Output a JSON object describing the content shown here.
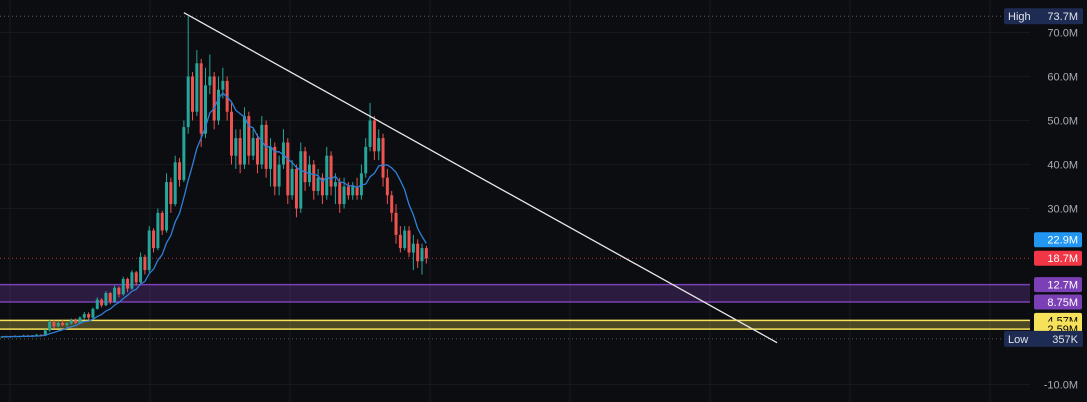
{
  "chart_data": {
    "type": "candlestick",
    "y_axis": {
      "ticks": [
        {
          "value": 70,
          "label": "70.0M"
        },
        {
          "value": 60,
          "label": "60.0M"
        },
        {
          "value": 50,
          "label": "50.0M"
        },
        {
          "value": 40,
          "label": "40.0M"
        },
        {
          "value": 30,
          "label": "30.0M"
        },
        {
          "value": -10,
          "label": "-10.0M"
        }
      ],
      "range": [
        -12.5,
        76
      ]
    },
    "markers": {
      "high": {
        "label": "High",
        "value_label": "73.7M",
        "value": 73.7
      },
      "low": {
        "label": "Low",
        "value_label": "357K",
        "value": 0.357
      }
    },
    "price_tags": [
      {
        "value_label": "22.9M",
        "value": 22.9,
        "color": "#2196f3",
        "text_color": "#ffffff",
        "meaning": "moving average"
      },
      {
        "value_label": "18.7M",
        "value": 18.7,
        "color": "#f23645",
        "text_color": "#ffffff",
        "meaning": "last price"
      },
      {
        "value_label": "12.7M",
        "value": 12.7,
        "color": "#7b3fb6",
        "text_color": "#ffffff"
      },
      {
        "value_label": "8.75M",
        "value": 8.75,
        "color": "#7b3fb6",
        "text_color": "#ffffff"
      },
      {
        "value_label": "4.57M",
        "value": 4.57,
        "color": "#f5e15a",
        "text_color": "#000000"
      },
      {
        "value_label": "2.59M",
        "value": 2.59,
        "color": "#f5e15a",
        "text_color": "#000000"
      }
    ],
    "zones": [
      {
        "from": 8.75,
        "to": 12.7,
        "color": "#7b3fb6"
      },
      {
        "from": 2.59,
        "to": 4.57,
        "color": "#f5e15a"
      }
    ],
    "trendline": {
      "start": {
        "bar": 42,
        "value": 74.5
      },
      "end": {
        "bar": 179,
        "value": -0.5
      }
    },
    "candles": [
      [
        0.8,
        1.0,
        0.6,
        0.9
      ],
      [
        0.9,
        1.1,
        0.7,
        0.8
      ],
      [
        0.8,
        1.0,
        0.6,
        1.0
      ],
      [
        1.0,
        1.2,
        0.8,
        0.9
      ],
      [
        0.9,
        1.1,
        0.7,
        1.0
      ],
      [
        1.0,
        1.3,
        0.8,
        1.1
      ],
      [
        1.1,
        1.3,
        0.9,
        1.0
      ],
      [
        1.0,
        1.2,
        0.8,
        1.2
      ],
      [
        1.2,
        1.5,
        1.0,
        1.3
      ],
      [
        1.3,
        1.4,
        1.0,
        1.1
      ],
      [
        1.1,
        2.6,
        1.0,
        2.3
      ],
      [
        2.3,
        4.8,
        2.0,
        4.2
      ],
      [
        4.2,
        4.6,
        2.8,
        3.2
      ],
      [
        3.2,
        4.5,
        3.0,
        4.0
      ],
      [
        4.0,
        4.6,
        3.2,
        3.5
      ],
      [
        3.5,
        4.2,
        2.8,
        3.9
      ],
      [
        3.9,
        5.0,
        3.6,
        4.6
      ],
      [
        4.6,
        5.0,
        3.8,
        4.0
      ],
      [
        4.0,
        5.5,
        3.8,
        5.2
      ],
      [
        5.2,
        6.5,
        4.8,
        6.0
      ],
      [
        6.0,
        6.4,
        4.8,
        5.2
      ],
      [
        5.2,
        7.5,
        5.0,
        7.2
      ],
      [
        7.2,
        9.8,
        7.0,
        9.3
      ],
      [
        9.3,
        9.6,
        7.5,
        8.0
      ],
      [
        8.0,
        11.2,
        7.8,
        10.8
      ],
      [
        10.8,
        11.0,
        8.2,
        8.8
      ],
      [
        8.8,
        12.5,
        8.5,
        12.0
      ],
      [
        12.0,
        12.3,
        9.8,
        10.5
      ],
      [
        10.5,
        14.5,
        10.2,
        14.0
      ],
      [
        14.0,
        14.3,
        11.0,
        11.8
      ],
      [
        11.8,
        16.0,
        11.5,
        15.5
      ],
      [
        15.5,
        15.8,
        12.5,
        13.2
      ],
      [
        13.2,
        20.0,
        13.0,
        19.0
      ],
      [
        19.0,
        19.5,
        15.0,
        16.0
      ],
      [
        16.0,
        26.0,
        15.5,
        25.0
      ],
      [
        25.0,
        25.5,
        20.0,
        21.0
      ],
      [
        21.0,
        30.0,
        20.5,
        29.0
      ],
      [
        29.0,
        29.5,
        24.0,
        25.0
      ],
      [
        25.0,
        38.0,
        24.5,
        36.0
      ],
      [
        36.0,
        37.0,
        29.0,
        31.0
      ],
      [
        31.0,
        42.0,
        30.5,
        40.5
      ],
      [
        40.5,
        41.5,
        35.0,
        36.5
      ],
      [
        36.5,
        50.0,
        36.0,
        48.5
      ],
      [
        48.5,
        73.7,
        47.0,
        60.0
      ],
      [
        60.0,
        61.0,
        50.0,
        52.0
      ],
      [
        52.0,
        66.0,
        51.0,
        63.0
      ],
      [
        63.0,
        64.0,
        44.0,
        47.0
      ],
      [
        47.0,
        62.0,
        46.0,
        58.0
      ],
      [
        58.0,
        65.0,
        56.0,
        60.0
      ],
      [
        60.0,
        61.0,
        48.0,
        50.0
      ],
      [
        50.0,
        60.0,
        49.0,
        57.0
      ],
      [
        57.0,
        62.0,
        55.0,
        59.0
      ],
      [
        59.0,
        60.0,
        50.0,
        52.0
      ],
      [
        52.0,
        54.0,
        40.0,
        42.0
      ],
      [
        42.0,
        48.0,
        39.0,
        46.0
      ],
      [
        46.0,
        48.0,
        38.0,
        40.0
      ],
      [
        40.0,
        53.0,
        39.0,
        51.0
      ],
      [
        51.0,
        52.0,
        40.0,
        42.0
      ],
      [
        42.0,
        48.0,
        41.0,
        46.0
      ],
      [
        46.0,
        47.0,
        38.0,
        40.0
      ],
      [
        40.0,
        51.0,
        39.0,
        49.0
      ],
      [
        49.0,
        50.0,
        37.0,
        39.0
      ],
      [
        39.0,
        46.0,
        35.0,
        44.0
      ],
      [
        44.0,
        45.0,
        33.0,
        35.0
      ],
      [
        35.0,
        42.0,
        33.0,
        40.0
      ],
      [
        40.0,
        48.0,
        39.0,
        45.0
      ],
      [
        45.0,
        46.0,
        31.0,
        33.0
      ],
      [
        33.0,
        41.0,
        32.0,
        39.0
      ],
      [
        39.0,
        40.0,
        28.0,
        30.0
      ],
      [
        30.0,
        45.0,
        29.0,
        43.0
      ],
      [
        43.0,
        44.0,
        34.0,
        36.0
      ],
      [
        36.0,
        42.0,
        35.0,
        40.0
      ],
      [
        40.0,
        41.0,
        32.0,
        34.0
      ],
      [
        34.0,
        39.0,
        33.0,
        37.0
      ],
      [
        37.0,
        38.0,
        31.0,
        33.0
      ],
      [
        33.0,
        44.0,
        32.0,
        42.0
      ],
      [
        42.0,
        43.0,
        33.0,
        35.0
      ],
      [
        35.0,
        38.0,
        31.0,
        36.0
      ],
      [
        36.0,
        37.0,
        29.0,
        31.0
      ],
      [
        31.0,
        37.0,
        30.0,
        35.0
      ],
      [
        35.0,
        36.0,
        32.0,
        33.0
      ],
      [
        33.0,
        36.0,
        32.0,
        35.0
      ],
      [
        35.0,
        37.0,
        32.0,
        33.0
      ],
      [
        33.0,
        40.0,
        32.0,
        38.0
      ],
      [
        38.0,
        46.0,
        37.0,
        44.0
      ],
      [
        44.0,
        54.0,
        43.0,
        50.0
      ],
      [
        50.0,
        51.0,
        41.0,
        43.0
      ],
      [
        43.0,
        48.0,
        41.0,
        46.0
      ],
      [
        46.0,
        47.0,
        35.0,
        37.0
      ],
      [
        37.0,
        39.0,
        31.0,
        33.0
      ],
      [
        33.0,
        34.0,
        27.0,
        29.0
      ],
      [
        29.0,
        31.0,
        22.0,
        24.0
      ],
      [
        24.0,
        26.0,
        20.0,
        21.0
      ],
      [
        21.0,
        26.0,
        20.5,
        25.0
      ],
      [
        25.0,
        26.0,
        19.0,
        20.0
      ],
      [
        20.0,
        24.0,
        16.0,
        22.0
      ],
      [
        22.0,
        23.0,
        16.5,
        18.0
      ],
      [
        18.0,
        22.0,
        15.0,
        21.0
      ],
      [
        21.0,
        21.5,
        17.5,
        18.7
      ]
    ]
  }
}
